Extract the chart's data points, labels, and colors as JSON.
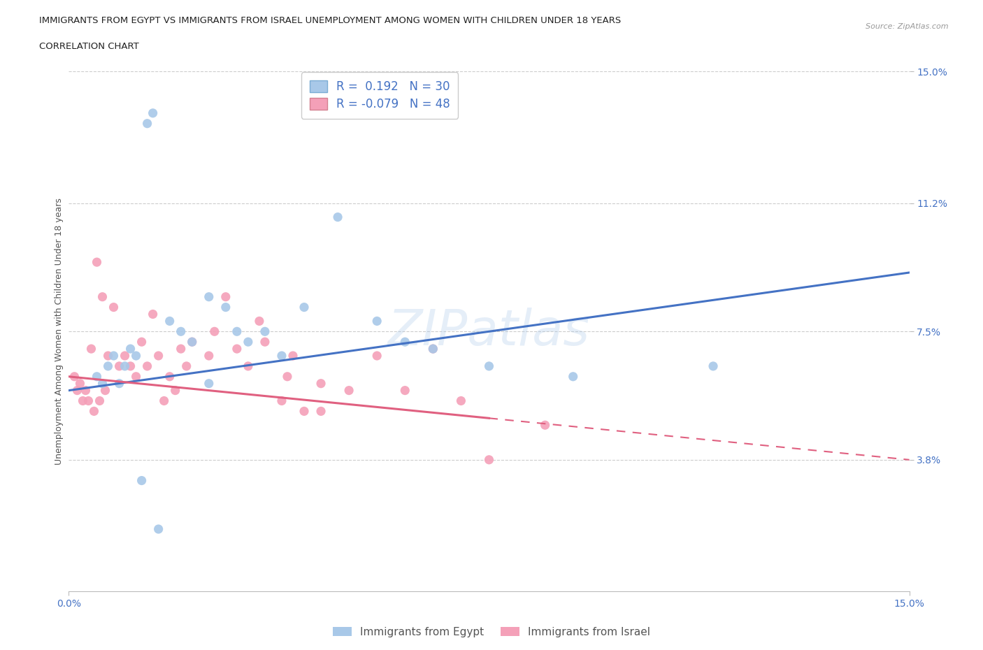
{
  "title_line1": "IMMIGRANTS FROM EGYPT VS IMMIGRANTS FROM ISRAEL UNEMPLOYMENT AMONG WOMEN WITH CHILDREN UNDER 18 YEARS",
  "title_line2": "CORRELATION CHART",
  "source": "Source: ZipAtlas.com",
  "ylabel": "Unemployment Among Women with Children Under 18 years",
  "xmin": 0.0,
  "xmax": 15.0,
  "ymin": 0.0,
  "ymax": 15.0,
  "yticks": [
    3.8,
    7.5,
    11.2,
    15.0
  ],
  "ytick_labels": [
    "3.8%",
    "7.5%",
    "11.2%",
    "15.0%"
  ],
  "xtick_labels_vals": [
    0.0,
    15.0
  ],
  "xtick_labels": [
    "0.0%",
    "15.0%"
  ],
  "grid_color": "#cccccc",
  "background_color": "#ffffff",
  "watermark": "ZIPatlas",
  "watermark_color": "#aac8e8",
  "legend_R1": "0.192",
  "legend_N1": "30",
  "legend_R2": "-0.079",
  "legend_N2": "48",
  "color_egypt": "#a8c8e8",
  "color_israel": "#f4a0b8",
  "line_color_egypt": "#4472c4",
  "line_color_israel": "#e06080",
  "egypt_x": [
    0.5,
    0.6,
    0.7,
    0.8,
    0.9,
    1.0,
    1.1,
    1.2,
    1.3,
    1.4,
    1.5,
    1.8,
    2.0,
    2.2,
    2.5,
    2.8,
    3.0,
    3.2,
    3.5,
    3.8,
    4.2,
    4.8,
    5.5,
    6.0,
    6.5,
    7.5,
    9.0,
    11.5,
    2.5,
    1.6
  ],
  "egypt_y": [
    6.2,
    6.0,
    6.5,
    6.8,
    6.0,
    6.5,
    7.0,
    6.8,
    3.2,
    13.5,
    13.8,
    7.8,
    7.5,
    7.2,
    8.5,
    8.2,
    7.5,
    7.2,
    7.5,
    6.8,
    8.2,
    10.8,
    7.8,
    7.2,
    7.0,
    6.5,
    6.2,
    6.5,
    6.0,
    1.8
  ],
  "israel_x": [
    0.1,
    0.15,
    0.2,
    0.25,
    0.3,
    0.35,
    0.4,
    0.45,
    0.5,
    0.55,
    0.6,
    0.65,
    0.7,
    0.8,
    0.9,
    1.0,
    1.1,
    1.2,
    1.3,
    1.4,
    1.5,
    1.6,
    1.7,
    1.8,
    1.9,
    2.0,
    2.1,
    2.2,
    2.5,
    2.6,
    2.8,
    3.0,
    3.2,
    3.4,
    3.5,
    3.8,
    3.9,
    4.0,
    4.2,
    4.5,
    5.0,
    5.5,
    6.0,
    6.5,
    7.0,
    7.5,
    8.5,
    4.5
  ],
  "israel_y": [
    6.2,
    5.8,
    6.0,
    5.5,
    5.8,
    5.5,
    7.0,
    5.2,
    9.5,
    5.5,
    8.5,
    5.8,
    6.8,
    8.2,
    6.5,
    6.8,
    6.5,
    6.2,
    7.2,
    6.5,
    8.0,
    6.8,
    5.5,
    6.2,
    5.8,
    7.0,
    6.5,
    7.2,
    6.8,
    7.5,
    8.5,
    7.0,
    6.5,
    7.8,
    7.2,
    5.5,
    6.2,
    6.8,
    5.2,
    6.0,
    5.8,
    6.8,
    5.8,
    7.0,
    5.5,
    3.8,
    4.8,
    5.2
  ],
  "blue_line_x0": 0.0,
  "blue_line_y0": 5.8,
  "blue_line_x1": 15.0,
  "blue_line_y1": 9.2,
  "pink_solid_x0": 0.0,
  "pink_solid_y0": 6.2,
  "pink_solid_x1": 7.5,
  "pink_solid_y1": 5.0,
  "pink_dash_x0": 7.5,
  "pink_dash_y0": 5.0,
  "pink_dash_x1": 15.0,
  "pink_dash_y1": 3.8
}
